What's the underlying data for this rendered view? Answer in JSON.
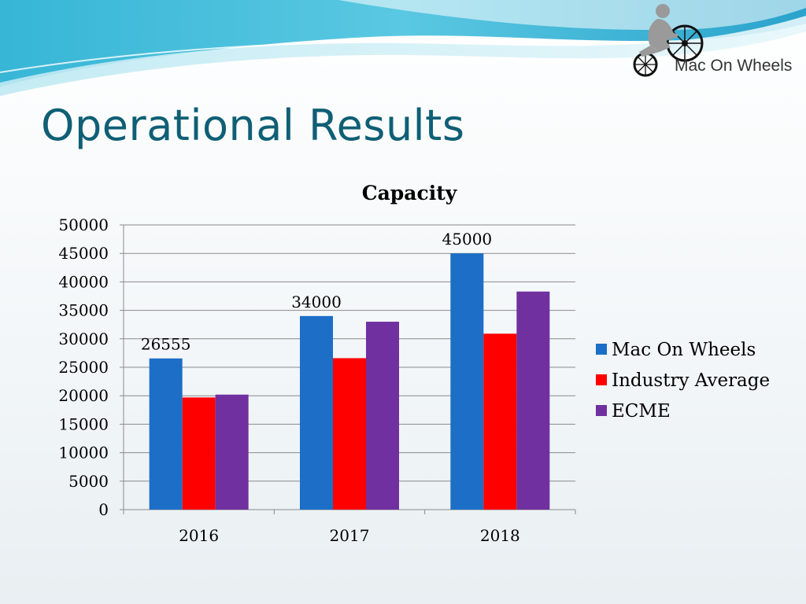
{
  "slide": {
    "title": "Operational Results",
    "logo_text": "Mac On Wheels"
  },
  "colors": {
    "title": "#0f5f75",
    "mac_on_wheels": "#1c6ec7",
    "industry_average": "#ff0000",
    "ecme": "#7030a0"
  },
  "chart_data": {
    "type": "bar",
    "title": "Capacity",
    "categories": [
      "2016",
      "2017",
      "2018"
    ],
    "series": [
      {
        "name": "Mac On Wheels",
        "color": "#1c6ec7",
        "values": [
          26555,
          34000,
          45000
        ],
        "data_labels": [
          "26555",
          "34000",
          "45000"
        ]
      },
      {
        "name": "Industry Average",
        "color": "#ff0000",
        "values": [
          19700,
          26600,
          30900
        ]
      },
      {
        "name": "ECME",
        "color": "#7030a0",
        "values": [
          20200,
          33000,
          38300
        ]
      }
    ],
    "ylim": [
      0,
      50000
    ],
    "yticks": [
      "0",
      "5000",
      "10000",
      "15000",
      "20000",
      "25000",
      "30000",
      "35000",
      "40000",
      "45000",
      "50000"
    ],
    "grid": true,
    "legend": "right"
  }
}
